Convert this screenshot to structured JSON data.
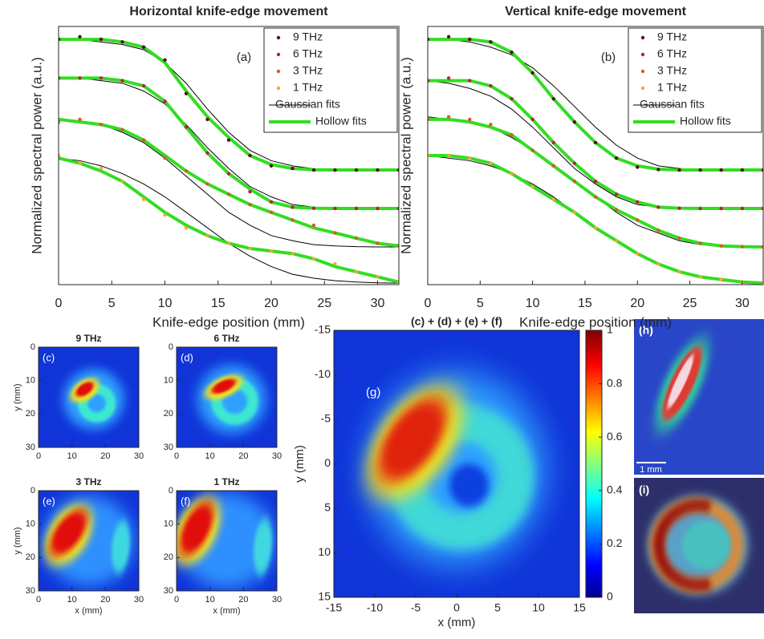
{
  "chart_data": [
    {
      "type": "scatter",
      "title": "Horizontal knife-edge movement",
      "annotation": "(a)",
      "xlabel": "Knife-edge position (mm)",
      "ylabel": "Normalized spectral power (a.u.)",
      "xlim": [
        0,
        32
      ],
      "xticks": [
        0,
        5,
        10,
        15,
        20,
        25,
        30
      ],
      "ylim": [
        0,
        1
      ],
      "legend": "upper right",
      "x": [
        0,
        2,
        4,
        6,
        8,
        10,
        12,
        14,
        16,
        18,
        20,
        22,
        24,
        26,
        28,
        30,
        32
      ],
      "series": [
        {
          "name": "9 THz",
          "color": "#5c0a22",
          "values": [
            0.95,
            0.96,
            0.95,
            0.94,
            0.92,
            0.87,
            0.74,
            0.64,
            0.56,
            0.5,
            0.46,
            0.45,
            0.444,
            0.444,
            0.444,
            0.444,
            0.444
          ]
        },
        {
          "name": "6 THz",
          "color": "#b3243c",
          "values": [
            0.8,
            0.8,
            0.8,
            0.79,
            0.77,
            0.71,
            0.61,
            0.51,
            0.43,
            0.36,
            0.32,
            0.3,
            0.296,
            0.295,
            0.295,
            0.295,
            0.295
          ]
        },
        {
          "name": "3 THz",
          "color": "#e2532c",
          "values": [
            0.63,
            0.64,
            0.62,
            0.6,
            0.56,
            0.49,
            0.44,
            0.39,
            0.35,
            0.31,
            0.28,
            0.25,
            0.23,
            0.2,
            0.18,
            0.16,
            0.15
          ]
        },
        {
          "name": "1 THz",
          "color": "#f2a834",
          "values": [
            0.5,
            0.47,
            0.45,
            0.4,
            0.33,
            0.27,
            0.22,
            0.19,
            0.16,
            0.14,
            0.13,
            0.12,
            0.1,
            0.08,
            0.05,
            0.03,
            0.01
          ]
        }
      ],
      "fits": [
        {
          "name": "Gaussian fits",
          "color": "#000000",
          "curves": [
            [
              0.95,
              0.95,
              0.94,
              0.93,
              0.91,
              0.86,
              0.78,
              0.68,
              0.59,
              0.52,
              0.48,
              0.46,
              0.449,
              0.445,
              0.444,
              0.444,
              0.444
            ],
            [
              0.8,
              0.8,
              0.79,
              0.78,
              0.75,
              0.7,
              0.62,
              0.53,
              0.45,
              0.38,
              0.34,
              0.31,
              0.3,
              0.296,
              0.295,
              0.295,
              0.295
            ],
            [
              0.64,
              0.63,
              0.62,
              0.59,
              0.55,
              0.49,
              0.42,
              0.35,
              0.28,
              0.23,
              0.19,
              0.17,
              0.155,
              0.15,
              0.147,
              0.146,
              0.146
            ],
            [
              0.49,
              0.48,
              0.46,
              0.43,
              0.39,
              0.34,
              0.28,
              0.22,
              0.16,
              0.11,
              0.07,
              0.04,
              0.025,
              0.015,
              0.01,
              0.007,
              0.006
            ]
          ]
        },
        {
          "name": "Hollow fits",
          "color": "#33dd22",
          "curves": [
            [
              0.95,
              0.95,
              0.95,
              0.94,
              0.92,
              0.86,
              0.75,
              0.65,
              0.57,
              0.5,
              0.465,
              0.45,
              0.445,
              0.444,
              0.444,
              0.444,
              0.444
            ],
            [
              0.8,
              0.8,
              0.8,
              0.79,
              0.77,
              0.71,
              0.61,
              0.51,
              0.43,
              0.37,
              0.32,
              0.3,
              0.296,
              0.295,
              0.295,
              0.295,
              0.295
            ],
            [
              0.64,
              0.63,
              0.62,
              0.6,
              0.56,
              0.5,
              0.44,
              0.39,
              0.35,
              0.31,
              0.28,
              0.25,
              0.22,
              0.2,
              0.18,
              0.16,
              0.15
            ],
            [
              0.49,
              0.47,
              0.44,
              0.4,
              0.34,
              0.28,
              0.23,
              0.19,
              0.16,
              0.14,
              0.13,
              0.12,
              0.1,
              0.07,
              0.05,
              0.03,
              0.01
            ]
          ]
        }
      ]
    },
    {
      "type": "scatter",
      "title": "Vertical knife-edge movement",
      "annotation": "(b)",
      "xlabel": "Knife-edge position (mm)",
      "ylabel": "Normalized spectral power (a.u.)",
      "xlim": [
        0,
        32
      ],
      "xticks": [
        0,
        5,
        10,
        15,
        20,
        25,
        30
      ],
      "ylim": [
        0,
        1
      ],
      "legend": "upper right",
      "x": [
        0,
        2,
        4,
        6,
        8,
        10,
        12,
        14,
        16,
        18,
        20,
        22,
        24,
        26,
        28,
        30,
        32
      ],
      "series": [
        {
          "name": "9 THz",
          "color": "#5c0a22",
          "values": [
            0.95,
            0.96,
            0.95,
            0.94,
            0.9,
            0.82,
            0.72,
            0.63,
            0.55,
            0.49,
            0.455,
            0.446,
            0.444,
            0.444,
            0.444,
            0.444,
            0.444
          ]
        },
        {
          "name": "6 THz",
          "color": "#b3243c",
          "values": [
            0.79,
            0.8,
            0.79,
            0.77,
            0.72,
            0.64,
            0.55,
            0.47,
            0.4,
            0.35,
            0.32,
            0.3,
            0.296,
            0.295,
            0.295,
            0.295,
            0.295
          ]
        },
        {
          "name": "3 THz",
          "color": "#e2532c",
          "values": [
            0.64,
            0.65,
            0.64,
            0.62,
            0.58,
            0.52,
            0.46,
            0.4,
            0.34,
            0.29,
            0.25,
            0.21,
            0.18,
            0.16,
            0.15,
            0.147,
            0.146
          ]
        },
        {
          "name": "1 THz",
          "color": "#f2a834",
          "values": [
            0.5,
            0.5,
            0.49,
            0.47,
            0.43,
            0.38,
            0.33,
            0.28,
            0.22,
            0.17,
            0.12,
            0.08,
            0.05,
            0.03,
            0.02,
            0.01,
            0.006
          ]
        }
      ],
      "fits": [
        {
          "name": "Gaussian fits",
          "color": "#000000",
          "curves": [
            [
              0.95,
              0.95,
              0.94,
              0.92,
              0.89,
              0.84,
              0.77,
              0.69,
              0.61,
              0.54,
              0.49,
              0.46,
              0.45,
              0.445,
              0.444,
              0.444,
              0.444
            ],
            [
              0.79,
              0.78,
              0.76,
              0.73,
              0.68,
              0.61,
              0.53,
              0.45,
              0.39,
              0.34,
              0.31,
              0.3,
              0.296,
              0.295,
              0.295,
              0.295,
              0.295
            ],
            [
              0.65,
              0.64,
              0.63,
              0.61,
              0.57,
              0.52,
              0.46,
              0.4,
              0.34,
              0.28,
              0.23,
              0.2,
              0.17,
              0.155,
              0.15,
              0.147,
              0.146
            ],
            [
              0.5,
              0.49,
              0.48,
              0.46,
              0.43,
              0.39,
              0.34,
              0.28,
              0.22,
              0.17,
              0.12,
              0.08,
              0.05,
              0.03,
              0.015,
              0.008,
              0.006
            ]
          ]
        },
        {
          "name": "Hollow fits",
          "color": "#33dd22",
          "curves": [
            [
              0.95,
              0.95,
              0.95,
              0.94,
              0.9,
              0.82,
              0.72,
              0.63,
              0.55,
              0.49,
              0.46,
              0.447,
              0.444,
              0.444,
              0.444,
              0.444,
              0.444
            ],
            [
              0.79,
              0.79,
              0.79,
              0.77,
              0.72,
              0.64,
              0.55,
              0.47,
              0.4,
              0.35,
              0.32,
              0.3,
              0.296,
              0.295,
              0.295,
              0.295,
              0.295
            ],
            [
              0.64,
              0.64,
              0.63,
              0.61,
              0.58,
              0.52,
              0.46,
              0.4,
              0.34,
              0.29,
              0.25,
              0.21,
              0.18,
              0.16,
              0.15,
              0.147,
              0.146
            ],
            [
              0.5,
              0.5,
              0.49,
              0.47,
              0.43,
              0.38,
              0.33,
              0.28,
              0.22,
              0.17,
              0.12,
              0.08,
              0.05,
              0.03,
              0.02,
              0.01,
              0.006
            ]
          ]
        }
      ]
    },
    {
      "type": "heatmap",
      "title": "9 THz",
      "annotation": "(c)",
      "ylabel": "y (mm)",
      "xlim": [
        0,
        30
      ],
      "ylim": [
        0,
        30
      ],
      "yreverse": true,
      "xticks": [
        0,
        10,
        20,
        30
      ],
      "yticks": [
        0,
        10,
        20,
        30
      ]
    },
    {
      "type": "heatmap",
      "title": "6 THz",
      "annotation": "(d)",
      "xlim": [
        0,
        30
      ],
      "ylim": [
        0,
        30
      ],
      "yreverse": true,
      "xticks": [
        0,
        10,
        20,
        30
      ],
      "yticks": [
        0,
        10,
        20,
        30
      ]
    },
    {
      "type": "heatmap",
      "title": "3 THz",
      "annotation": "(e)",
      "xlabel": "x (mm)",
      "ylabel": "y (mm)",
      "xlim": [
        0,
        30
      ],
      "ylim": [
        0,
        30
      ],
      "yreverse": true,
      "xticks": [
        0,
        10,
        20,
        30
      ],
      "yticks": [
        0,
        10,
        20,
        30
      ]
    },
    {
      "type": "heatmap",
      "title": "1 THz",
      "annotation": "(f)",
      "xlabel": "x (mm)",
      "xlim": [
        0,
        30
      ],
      "ylim": [
        0,
        30
      ],
      "yreverse": true,
      "xticks": [
        0,
        10,
        20,
        30
      ],
      "yticks": [
        0,
        10,
        20,
        30
      ]
    },
    {
      "type": "heatmap",
      "title": "(c) + (d) + (e) + (f)",
      "annotation": "(g)",
      "xlabel": "x (mm)",
      "ylabel": "y (mm)",
      "xlim": [
        -15,
        15
      ],
      "ylim": [
        -15,
        15
      ],
      "yreverse": true,
      "xticks": [
        -15,
        -10,
        -5,
        0,
        5,
        10,
        15
      ],
      "yticks": [
        -15,
        -10,
        -5,
        0,
        5,
        10,
        15
      ],
      "colorbar": {
        "clim": [
          0,
          1
        ],
        "ticks": [
          0,
          0.2,
          0.4,
          0.6,
          0.8,
          1
        ]
      }
    }
  ],
  "images": {
    "h": {
      "label": "(h)",
      "scale_label": "1 mm"
    },
    "i": {
      "label": "(i)"
    }
  }
}
